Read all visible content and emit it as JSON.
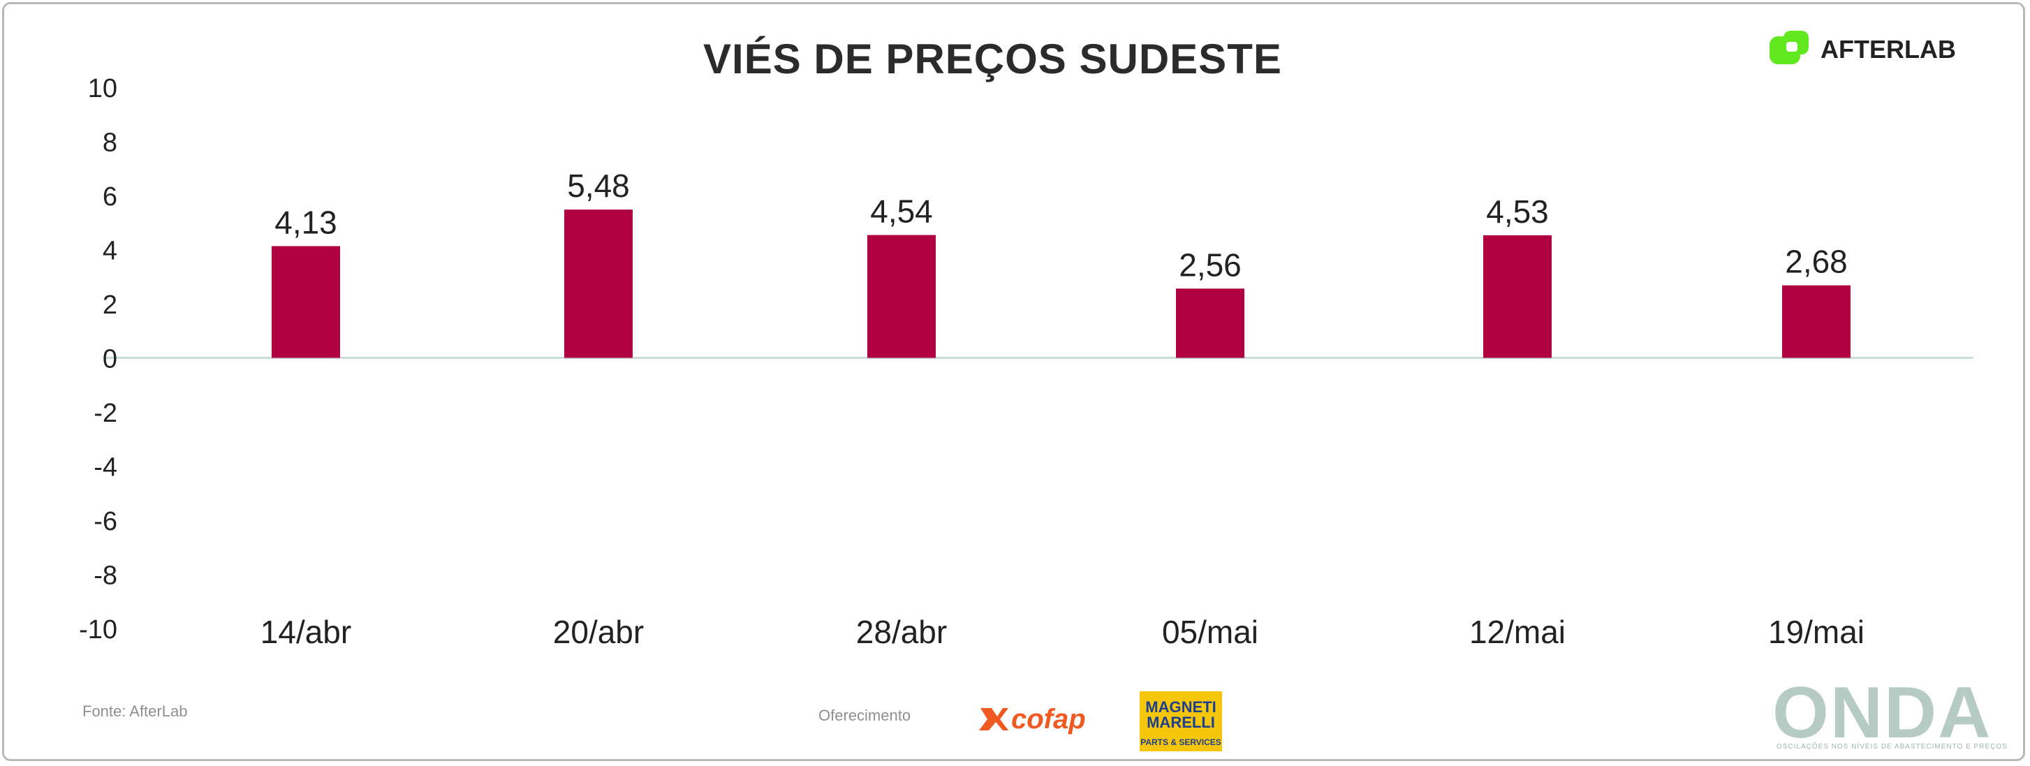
{
  "title": "VIÉS DE PREÇOS SUDESTE",
  "brand": {
    "name": "AFTERLAB",
    "color": "#61e81e"
  },
  "source_text": "Fonte: AfterLab",
  "sponsor": {
    "label": "Oferecimento",
    "cofap": "cofap",
    "magneti_top": "MAGNETI MARELLI",
    "magneti_bottom": "PARTS & SERVICES"
  },
  "onda": {
    "word": "ONDA",
    "tagline": "OSCILAÇÕES NOS NÍVEIS DE ABASTECIMENTO E PREÇOS"
  },
  "colors": {
    "bar": "#b0003f",
    "axis_text": "#222222",
    "zero_line": "#c8dcd6"
  },
  "chart_data": {
    "type": "bar",
    "title": "VIÉS DE PREÇOS SUDESTE",
    "categories": [
      "14/abr",
      "20/abr",
      "28/abr",
      "05/mai",
      "12/mai",
      "19/mai"
    ],
    "values": [
      4.13,
      5.48,
      4.54,
      2.56,
      4.53,
      2.68
    ],
    "data_labels": [
      "4,13",
      "5,48",
      "4,54",
      "2,56",
      "4,53",
      "2,68"
    ],
    "ylim": [
      -10,
      10
    ],
    "yticks": [
      -10,
      -8,
      -6,
      -4,
      -2,
      0,
      2,
      4,
      6,
      8,
      10
    ],
    "grid": false,
    "legend": "none"
  }
}
